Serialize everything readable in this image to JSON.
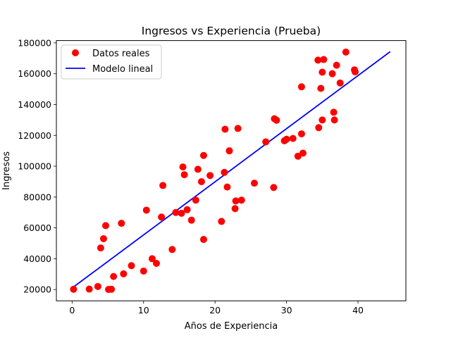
{
  "chart_data": {
    "type": "scatter",
    "title": "Ingresos vs Experiencia (Prueba)",
    "xlabel": "Años de Experiencia",
    "ylabel": "Ingresos",
    "xlim": [
      -2.2,
      46.7
    ],
    "ylim": [
      12700,
      181500
    ],
    "xticks": [
      0,
      10,
      20,
      30,
      40
    ],
    "yticks": [
      20000,
      40000,
      60000,
      80000,
      100000,
      120000,
      140000,
      160000,
      180000
    ],
    "grid": false,
    "legend_position": "top-left",
    "colors": {
      "points": "#ff0000",
      "line": "#0000ff"
    },
    "series": [
      {
        "name": "Datos reales",
        "kind": "scatter",
        "points": [
          [
            0.2,
            20200
          ],
          [
            2.4,
            20300
          ],
          [
            3.6,
            22000
          ],
          [
            5.1,
            20100
          ],
          [
            5.5,
            20200
          ],
          [
            4.0,
            47000
          ],
          [
            4.4,
            53000
          ],
          [
            4.7,
            61500
          ],
          [
            5.8,
            28500
          ],
          [
            6.9,
            63000
          ],
          [
            7.2,
            30200
          ],
          [
            8.3,
            35500
          ],
          [
            10.0,
            32000
          ],
          [
            10.4,
            71500
          ],
          [
            11.2,
            40000
          ],
          [
            11.8,
            37000
          ],
          [
            12.5,
            67000
          ],
          [
            12.7,
            87500
          ],
          [
            14.0,
            46000
          ],
          [
            14.5,
            70000
          ],
          [
            15.3,
            69500
          ],
          [
            15.5,
            99500
          ],
          [
            15.7,
            94500
          ],
          [
            16.1,
            71800
          ],
          [
            16.7,
            65000
          ],
          [
            17.3,
            78000
          ],
          [
            17.6,
            98000
          ],
          [
            18.1,
            90000
          ],
          [
            18.4,
            107000
          ],
          [
            18.4,
            52500
          ],
          [
            19.3,
            94000
          ],
          [
            20.9,
            64200
          ],
          [
            21.3,
            96000
          ],
          [
            21.4,
            124000
          ],
          [
            21.7,
            86500
          ],
          [
            22.0,
            110000
          ],
          [
            22.8,
            72500
          ],
          [
            22.9,
            77500
          ],
          [
            23.2,
            124500
          ],
          [
            23.7,
            78000
          ],
          [
            25.5,
            89000
          ],
          [
            27.1,
            115800
          ],
          [
            28.2,
            86200
          ],
          [
            28.3,
            130800
          ],
          [
            28.6,
            129800
          ],
          [
            29.7,
            116500
          ],
          [
            30.0,
            117500
          ],
          [
            30.9,
            118000
          ],
          [
            31.6,
            106500
          ],
          [
            32.1,
            121000
          ],
          [
            32.1,
            151500
          ],
          [
            32.3,
            108500
          ],
          [
            34.4,
            168800
          ],
          [
            34.5,
            125000
          ],
          [
            34.8,
            150500
          ],
          [
            35.0,
            130000
          ],
          [
            35.0,
            161000
          ],
          [
            35.2,
            169200
          ],
          [
            36.4,
            160000
          ],
          [
            36.6,
            135000
          ],
          [
            36.7,
            130000
          ],
          [
            37.0,
            165500
          ],
          [
            37.5,
            154000
          ],
          [
            38.3,
            174000
          ],
          [
            39.5,
            162500
          ],
          [
            39.6,
            161200
          ]
        ]
      },
      {
        "name": "Modelo lineal",
        "kind": "line",
        "points": [
          [
            0.0,
            21000
          ],
          [
            44.5,
            174300
          ]
        ]
      }
    ]
  }
}
